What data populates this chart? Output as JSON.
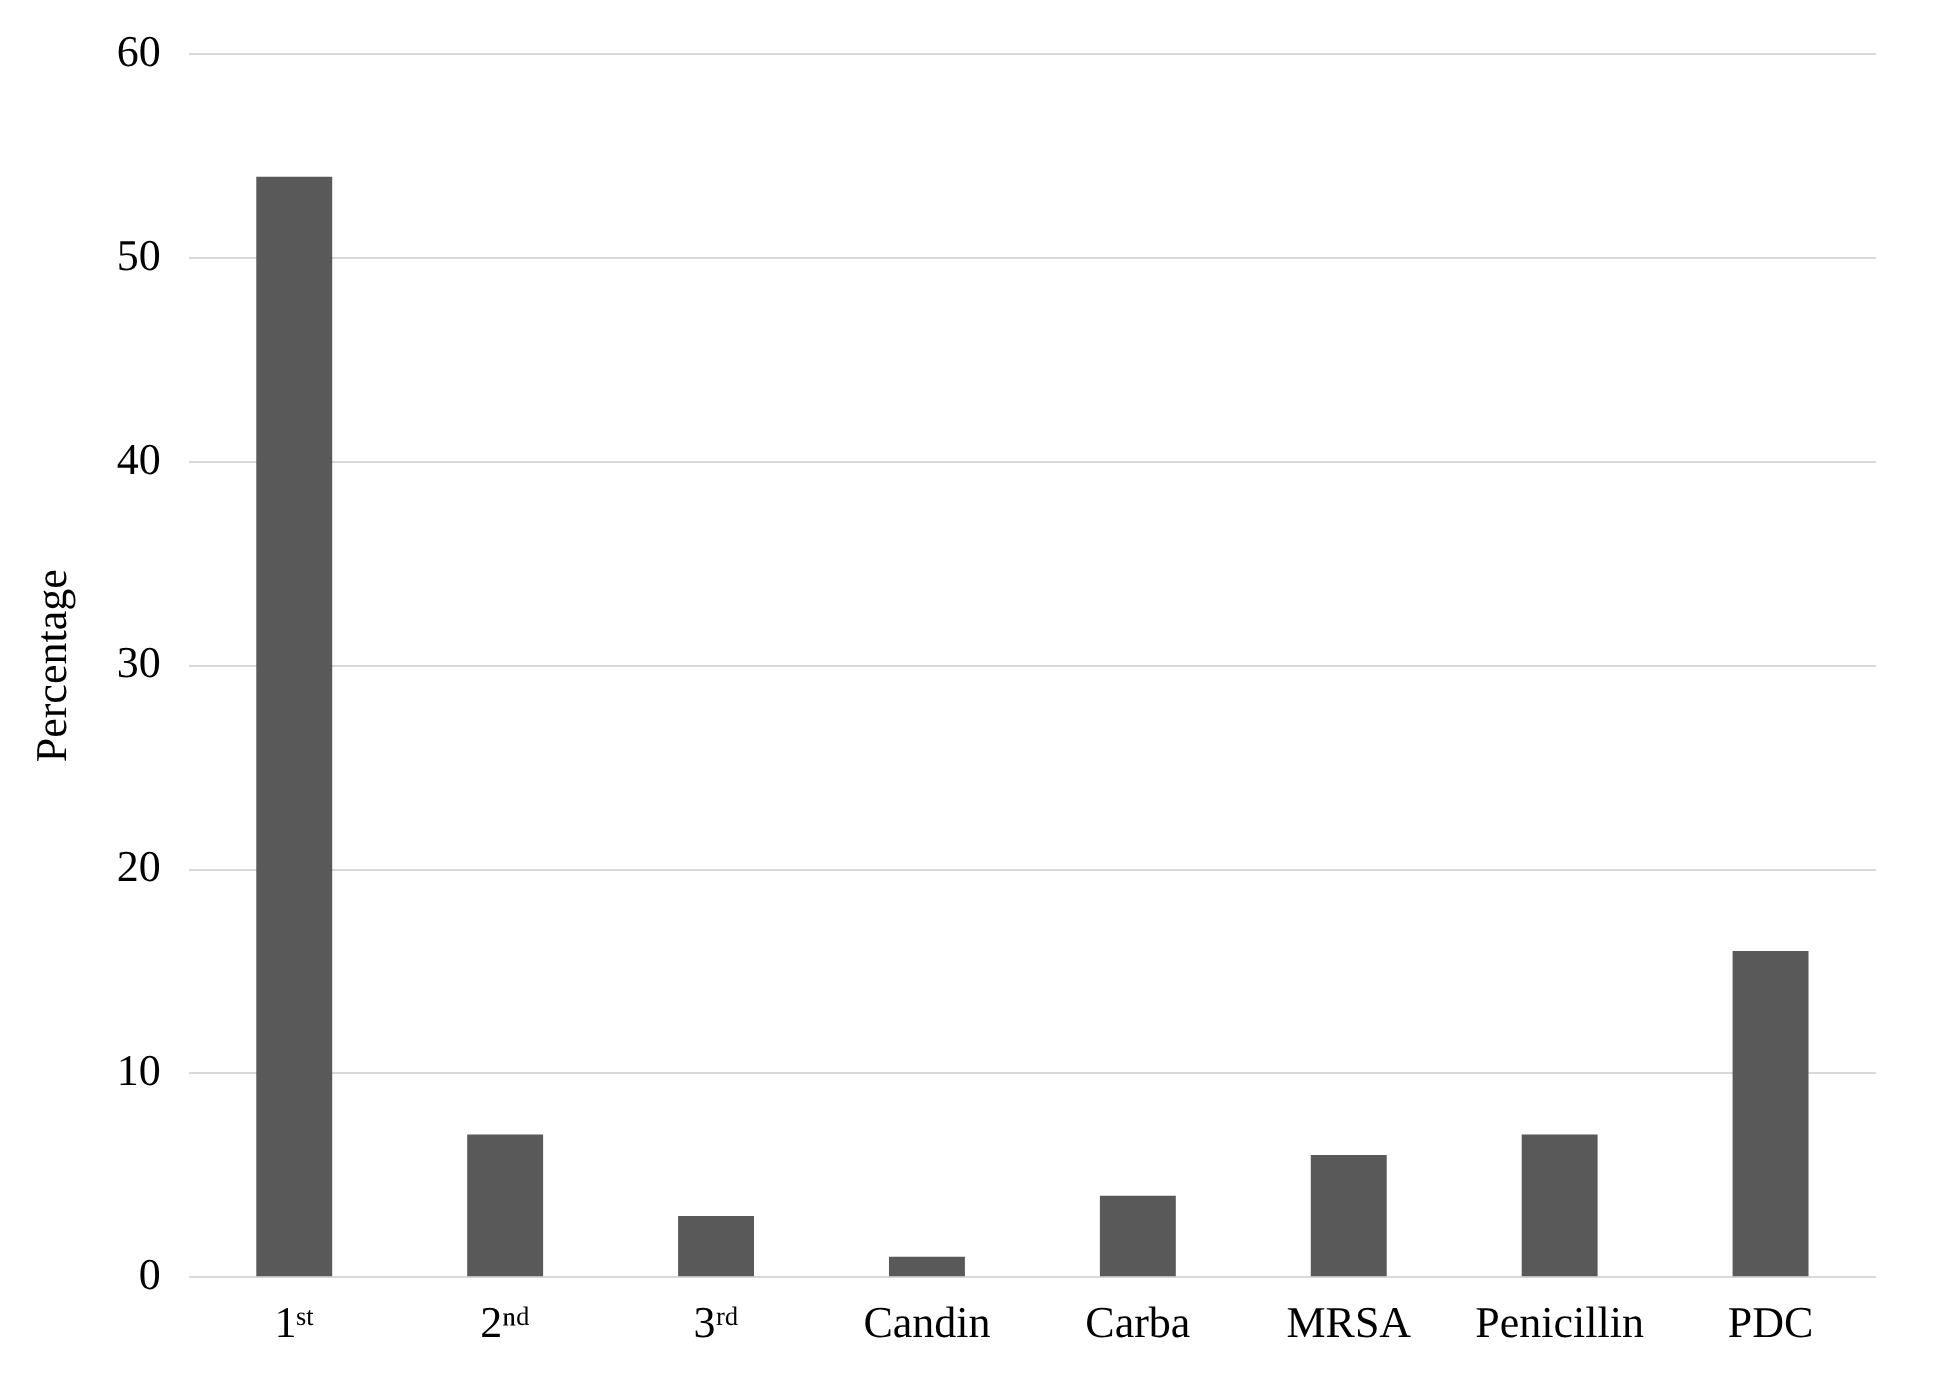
{
  "chart_data": {
    "type": "bar",
    "ylabel": "Percentage",
    "categories": [
      "1ˢᵗ",
      "2ⁿᵈ",
      "3ʳᵈ",
      "Candin",
      "Carba",
      "MRSA",
      "Penicillin",
      "PDC"
    ],
    "values": [
      54,
      7,
      3,
      1,
      4,
      6,
      7,
      16
    ],
    "color": "#595959",
    "ylim": [
      0,
      60
    ],
    "yticks": [
      0,
      10,
      20,
      30,
      40,
      50,
      60
    ],
    "grid": "y",
    "legend": false
  }
}
